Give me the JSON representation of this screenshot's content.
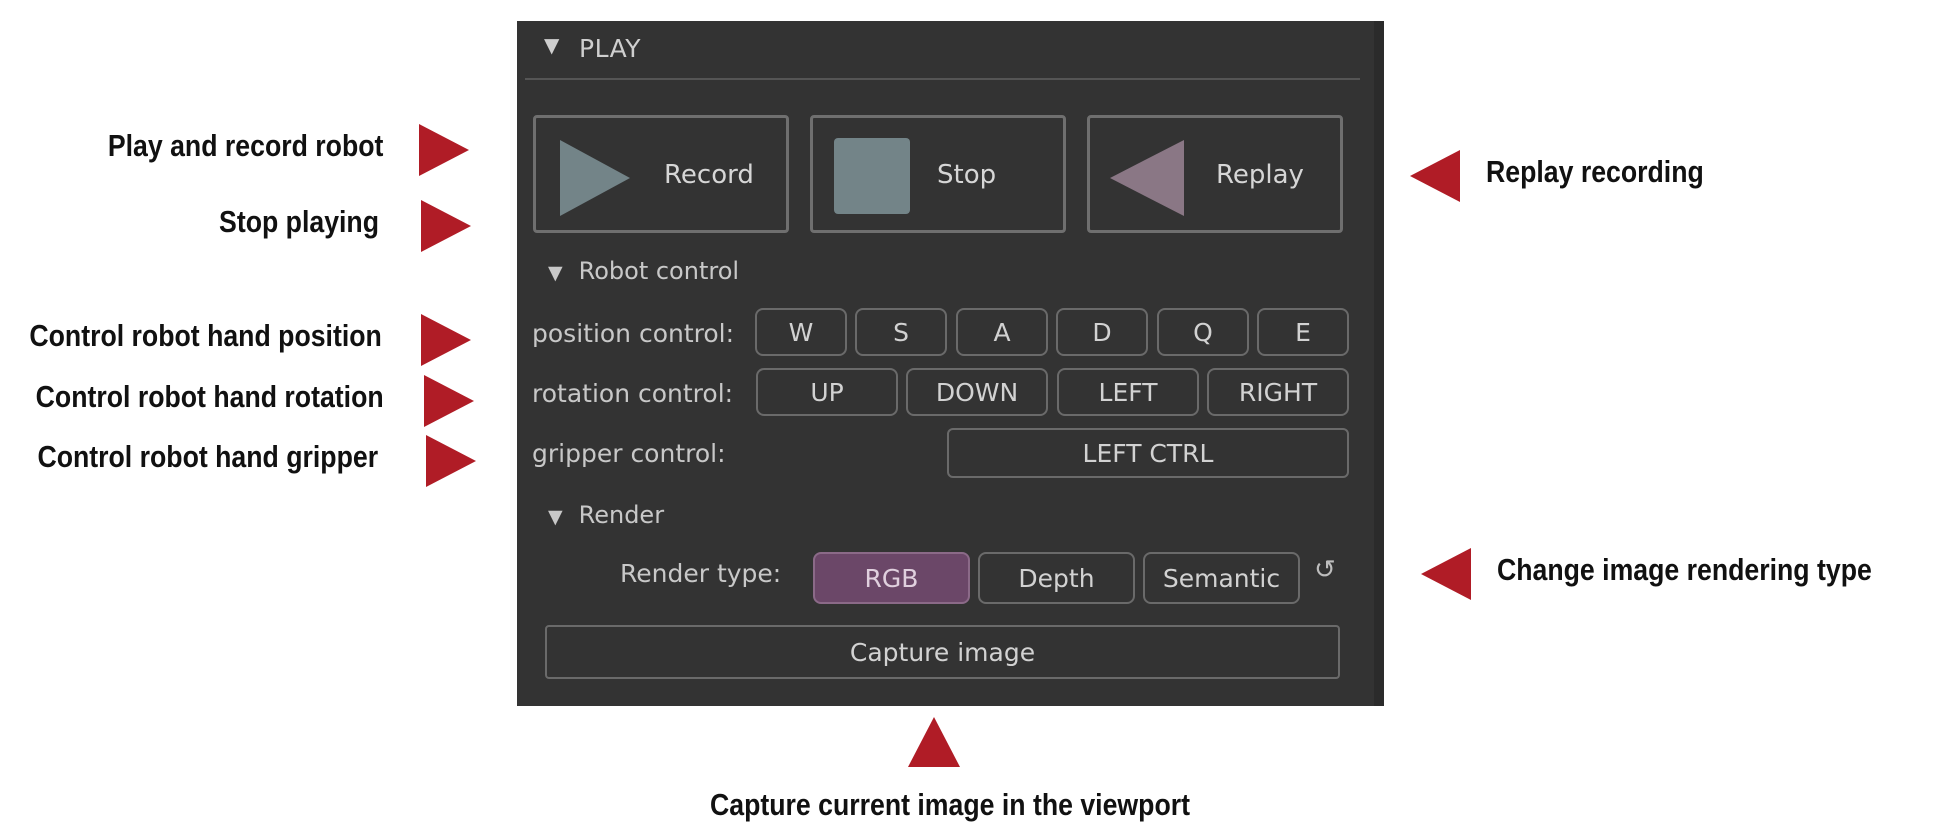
{
  "panel": {
    "title": "PLAY",
    "caret": "▼",
    "buttons": {
      "record": "Record",
      "stop": "Stop",
      "replay": "Replay"
    },
    "robot_control": {
      "title": "Robot control",
      "position_label": "position control:",
      "position_keys": [
        "W",
        "S",
        "A",
        "D",
        "Q",
        "E"
      ],
      "rotation_label": "rotation control:",
      "rotation_keys": [
        "UP",
        "DOWN",
        "LEFT",
        "RIGHT"
      ],
      "gripper_label": "gripper control:",
      "gripper_key": "LEFT CTRL"
    },
    "render": {
      "title": "Render",
      "type_label": "Render type:",
      "options": [
        "RGB",
        "Depth",
        "Semantic"
      ],
      "selected": "RGB",
      "reset_icon": "↺",
      "capture_label": "Capture image"
    },
    "colors": {
      "panel_bg": "#333333",
      "play_icon": "#738488",
      "replay_icon": "#8a7785",
      "active_option": "#6b4768"
    }
  },
  "annotations": {
    "record": "Play and record robot",
    "stop": "Stop playing",
    "position": "Control robot hand position",
    "rotation": "Control robot hand rotation",
    "gripper": "Control robot hand gripper",
    "replay": "Replay recording",
    "render": "Change image rendering type",
    "capture": "Capture current image in the viewport",
    "arrow_color": "#b01c26"
  }
}
